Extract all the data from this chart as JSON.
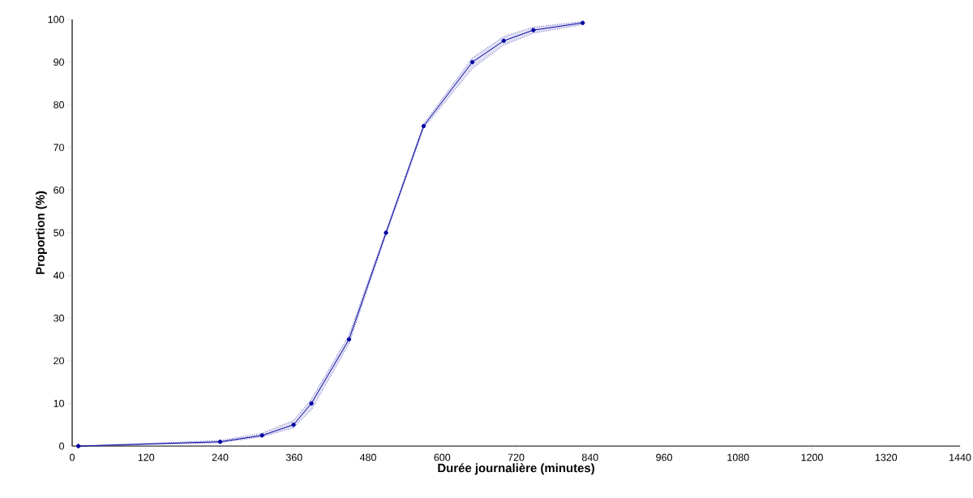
{
  "chart_data": {
    "type": "line",
    "xlabel": "Durée journalière (minutes)",
    "ylabel": "Proportion (%)",
    "series": [
      {
        "color": "#0000a0",
        "x": [
          10,
          240,
          308,
          359,
          388,
          449,
          509,
          570,
          649,
          700,
          748,
          828
        ],
        "values": [
          0,
          1,
          2.5,
          5,
          10,
          25,
          50,
          75,
          90,
          95,
          97.5,
          99.2
        ],
        "lower": [
          0,
          0.8,
          2.2,
          4.3,
          8.5,
          24,
          49.5,
          74.5,
          88.5,
          94,
          96.8,
          98.8
        ],
        "upper": [
          0,
          1.3,
          3,
          6,
          11,
          26,
          50.5,
          75.5,
          91,
          96,
          98.2,
          99.5
        ]
      }
    ],
    "xlim": [
      0,
      1440
    ],
    "xticks": [
      0,
      120,
      240,
      360,
      480,
      600,
      720,
      840,
      960,
      1080,
      1200,
      1320,
      1440
    ],
    "ylim": [
      0,
      100
    ],
    "yticks": [
      0,
      10,
      20,
      30,
      40,
      50,
      60,
      70,
      80,
      90,
      100
    ],
    "marker": "circle",
    "line_style": "solid",
    "grid": false
  }
}
